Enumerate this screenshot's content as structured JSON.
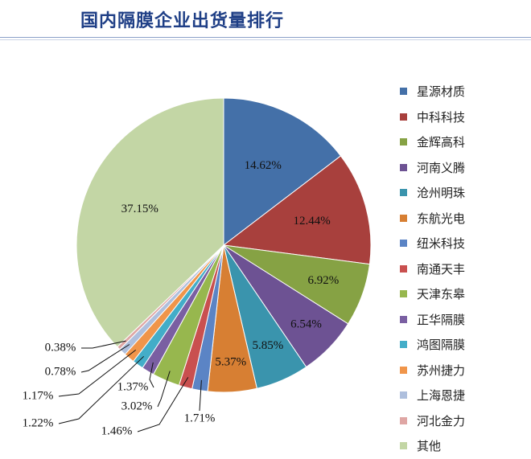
{
  "header": {
    "title": "国内隔膜企业出货量排行"
  },
  "chart_data": {
    "type": "pie",
    "title": "国内隔膜企业出货量排行",
    "legend_position": "right",
    "start_angle_deg": 0,
    "direction": "clockwise",
    "unit": "%",
    "series": [
      {
        "values": [
          14.62,
          12.44,
          6.92,
          6.54,
          5.85,
          5.37,
          1.71,
          1.46,
          3.02,
          1.37,
          1.22,
          1.17,
          0.78,
          0.38,
          37.15
        ]
      }
    ],
    "categories": [
      "星源材质",
      "中科科技",
      "金辉高科",
      "河南义腾",
      "沧州明珠",
      "东航光电",
      "纽米科技",
      "南通天丰",
      "天津东皋",
      "正华隔膜",
      "鸿图隔膜",
      "苏州捷力",
      "上海恩捷",
      "河北金力",
      "其他"
    ],
    "labels": [
      "14.62%",
      "12.44%",
      "6.92%",
      "6.54%",
      "5.85%",
      "5.37%",
      "1.71%",
      "1.46%",
      "3.02%",
      "1.37%",
      "1.22%",
      "1.17%",
      "0.78%",
      "0.38%",
      "37.15%"
    ],
    "colors": [
      "#4470a8",
      "#a8403d",
      "#86a244",
      "#6d5293",
      "#3a94ad",
      "#d77f33",
      "#5b84c5",
      "#c9504f",
      "#97b74e",
      "#7a5fa2",
      "#43adc8",
      "#f0954a",
      "#aebfdd",
      "#dfa6a4",
      "#c3d6a5"
    ]
  }
}
